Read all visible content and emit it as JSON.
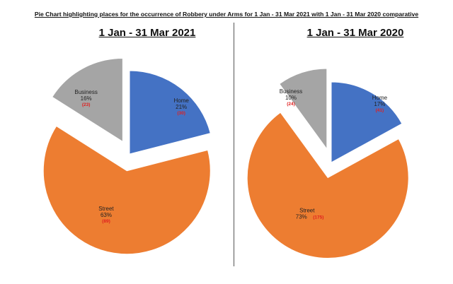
{
  "title": "Pie Chart highlighting places for the occurrence of Robbery under Arms for 1 Jan -  31 Mar 2021 with 1 Jan -  31 Mar 2020 comparative",
  "chart_data": [
    {
      "type": "pie",
      "title": "1 Jan -  31 Mar 2021",
      "slices": [
        {
          "name": "Home",
          "percent": 21,
          "percent_label": "21%",
          "count_label": "(30)",
          "color": "#4472c4"
        },
        {
          "name": "Street",
          "percent": 63,
          "percent_label": "63%",
          "count_label": "(89)",
          "color": "#ed7d31"
        },
        {
          "name": "Business",
          "percent": 16,
          "percent_label": "16%",
          "count_label": "(23)",
          "color": "#a5a5a5"
        }
      ]
    },
    {
      "type": "pie",
      "title": "1 Jan -  31 Mar 2020",
      "slices": [
        {
          "name": "Home",
          "percent": 17,
          "percent_label": "17%",
          "count_label": "(41)",
          "color": "#4472c4"
        },
        {
          "name": "Street",
          "percent": 73,
          "percent_label": "73%",
          "count_label": "(175)",
          "color": "#ed7d31"
        },
        {
          "name": "Business",
          "percent": 10,
          "percent_label": "10%",
          "count_label": "(24)",
          "color": "#a5a5a5"
        }
      ]
    }
  ]
}
